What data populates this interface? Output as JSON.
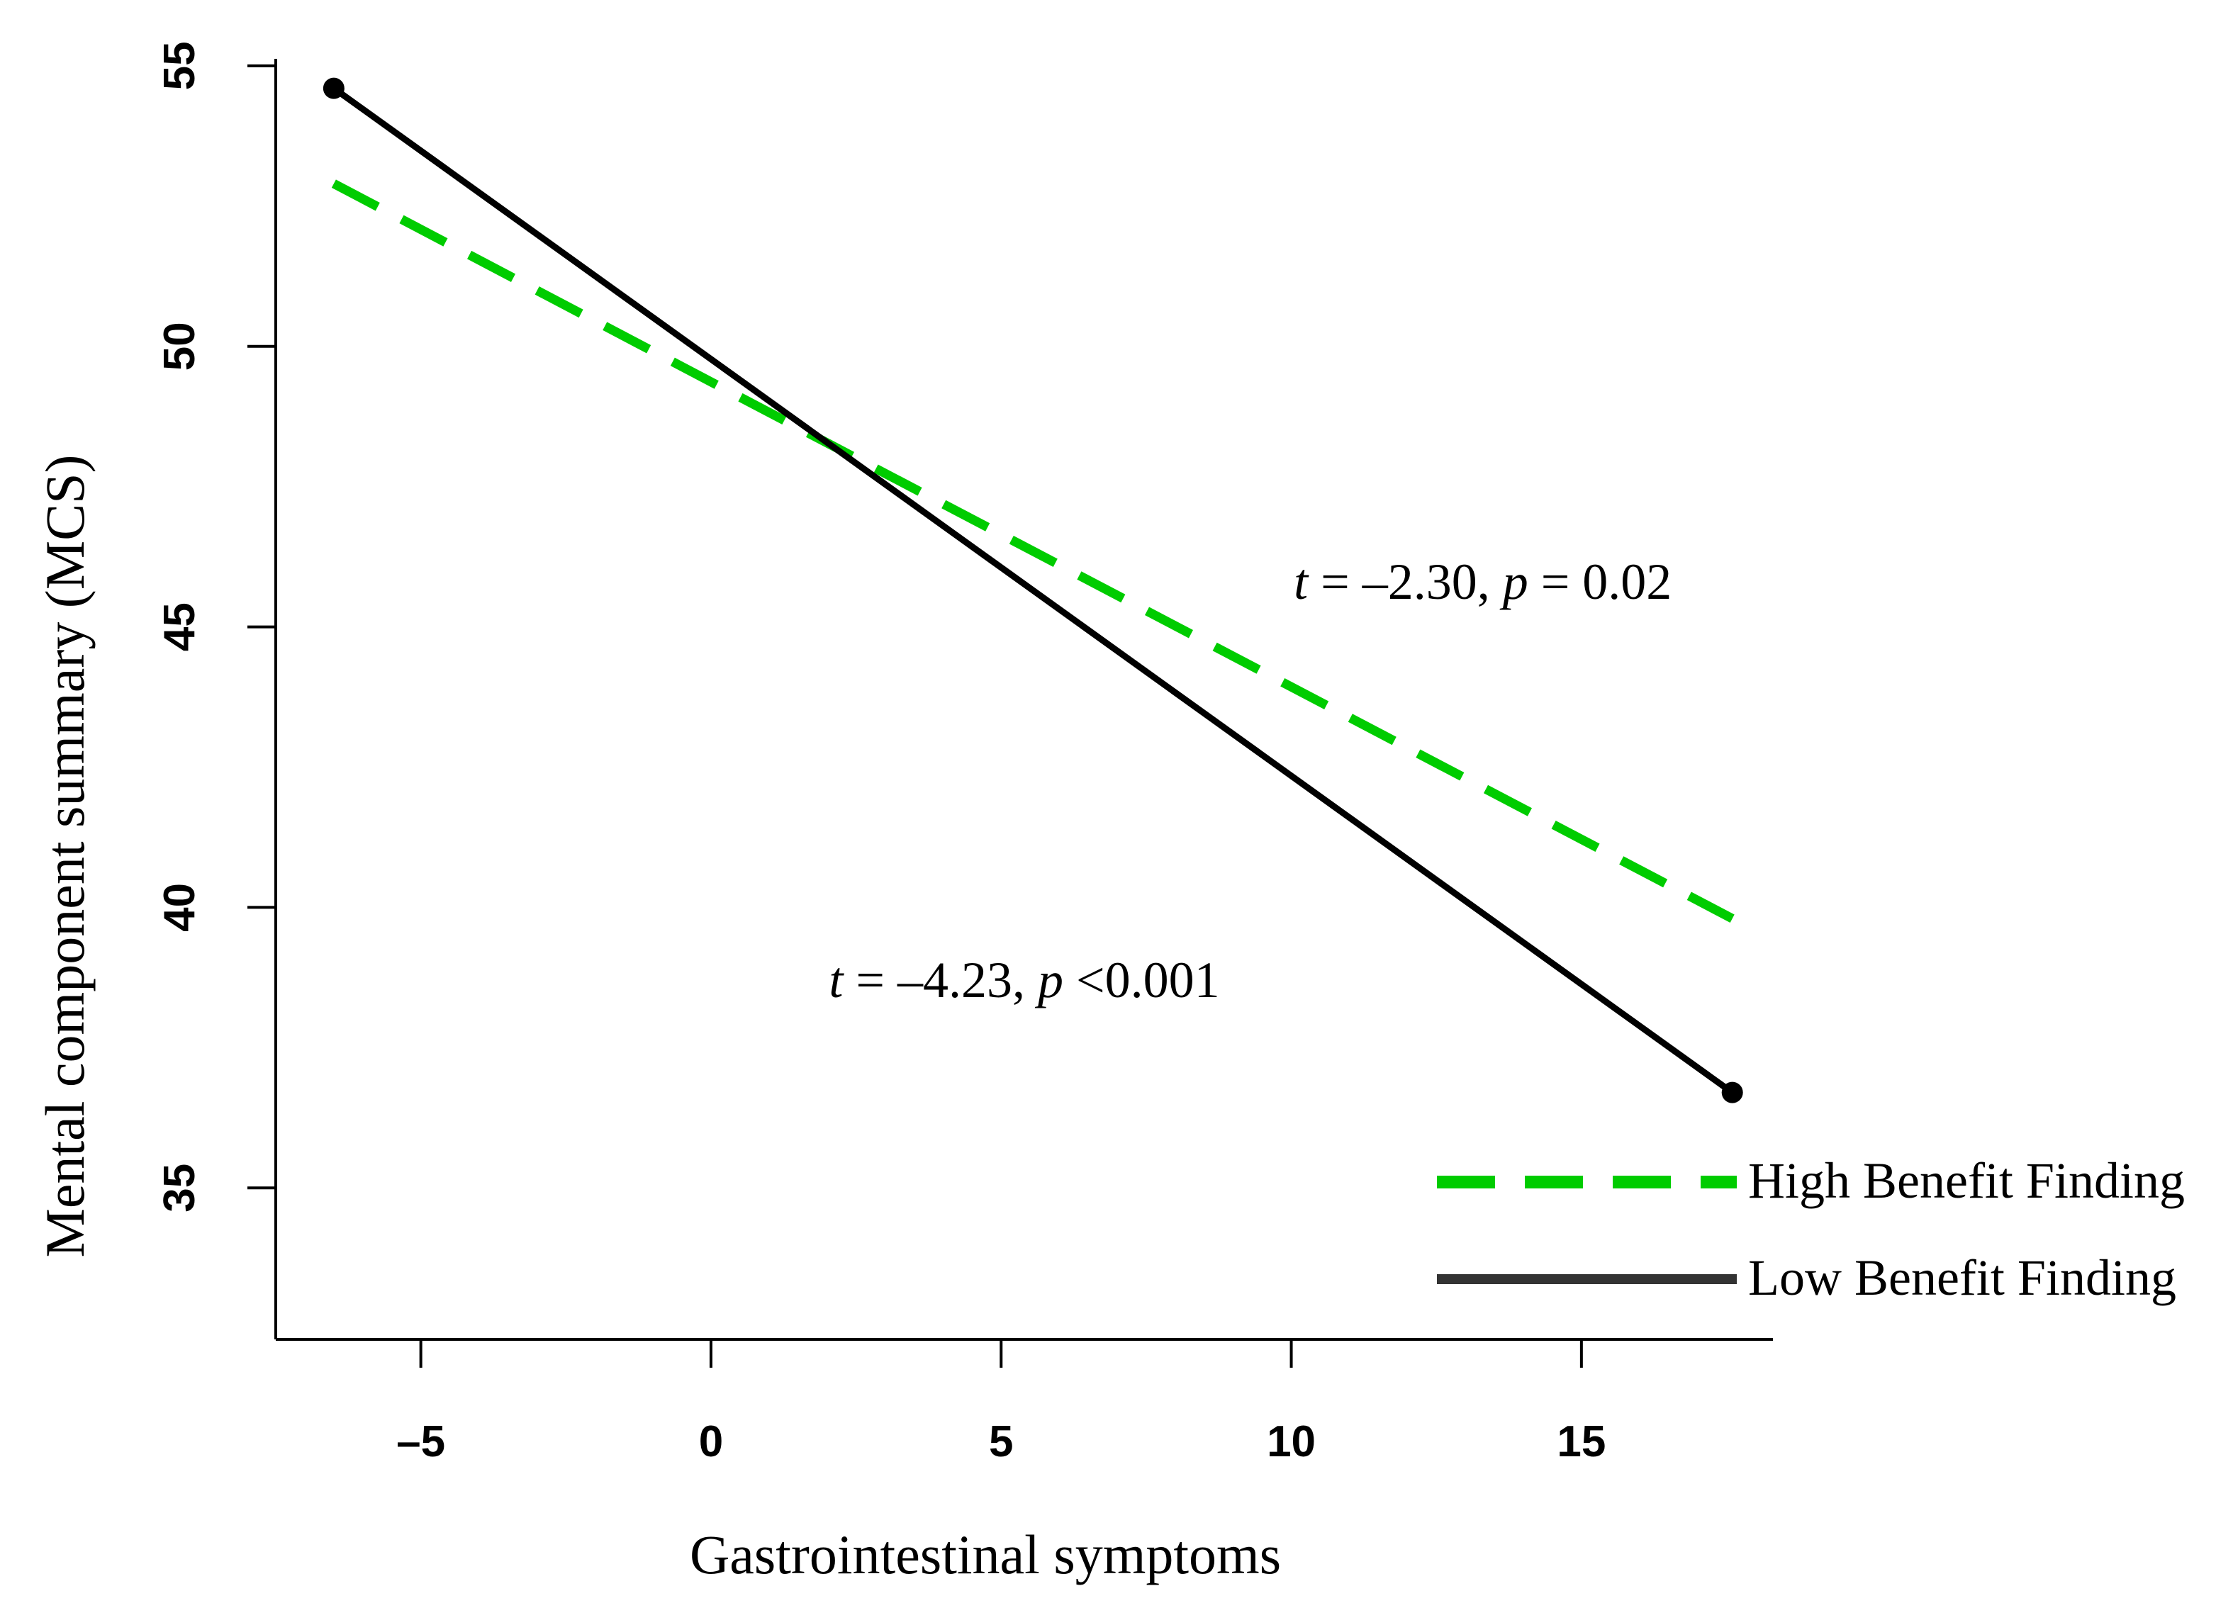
{
  "chart_data": {
    "type": "line",
    "title": "",
    "xlabel": "Gastrointestinal symptoms",
    "ylabel": "Mental component summary (MCS)",
    "xlim": [
      -7.5,
      18.3
    ],
    "ylim": [
      32.3,
      55.1
    ],
    "xticks": [
      -5,
      0,
      5,
      10,
      15
    ],
    "xtick_labels": [
      "–5",
      "0",
      "5",
      "10",
      "15"
    ],
    "yticks": [
      35,
      40,
      45,
      50,
      55
    ],
    "ytick_labels": [
      "35",
      "40",
      "45",
      "50",
      "55"
    ],
    "grid": false,
    "legend_position": "bottom-right",
    "series": [
      {
        "name": "High Benefit Finding",
        "color": "#00cc00",
        "style": "dashed",
        "x": [
          -6.5,
          17.6
        ],
        "y": [
          52.9,
          39.8
        ]
      },
      {
        "name": "Low Benefit Finding",
        "color": "#000000",
        "style": "solid",
        "x": [
          -6.5,
          17.6
        ],
        "y": [
          54.6,
          36.7
        ],
        "end_markers": true
      }
    ],
    "annotations": [
      {
        "id": "high",
        "stat": "t",
        "t_text": " = –2.30, ",
        "p": "p",
        "p_text": " = 0.02",
        "x": 13.3,
        "y": 45.5
      },
      {
        "id": "low",
        "stat": "t",
        "t_text": " = –4.23, ",
        "p": "p",
        "p_text": " <0.001",
        "x": 5.4,
        "y": 38.4
      }
    ]
  }
}
